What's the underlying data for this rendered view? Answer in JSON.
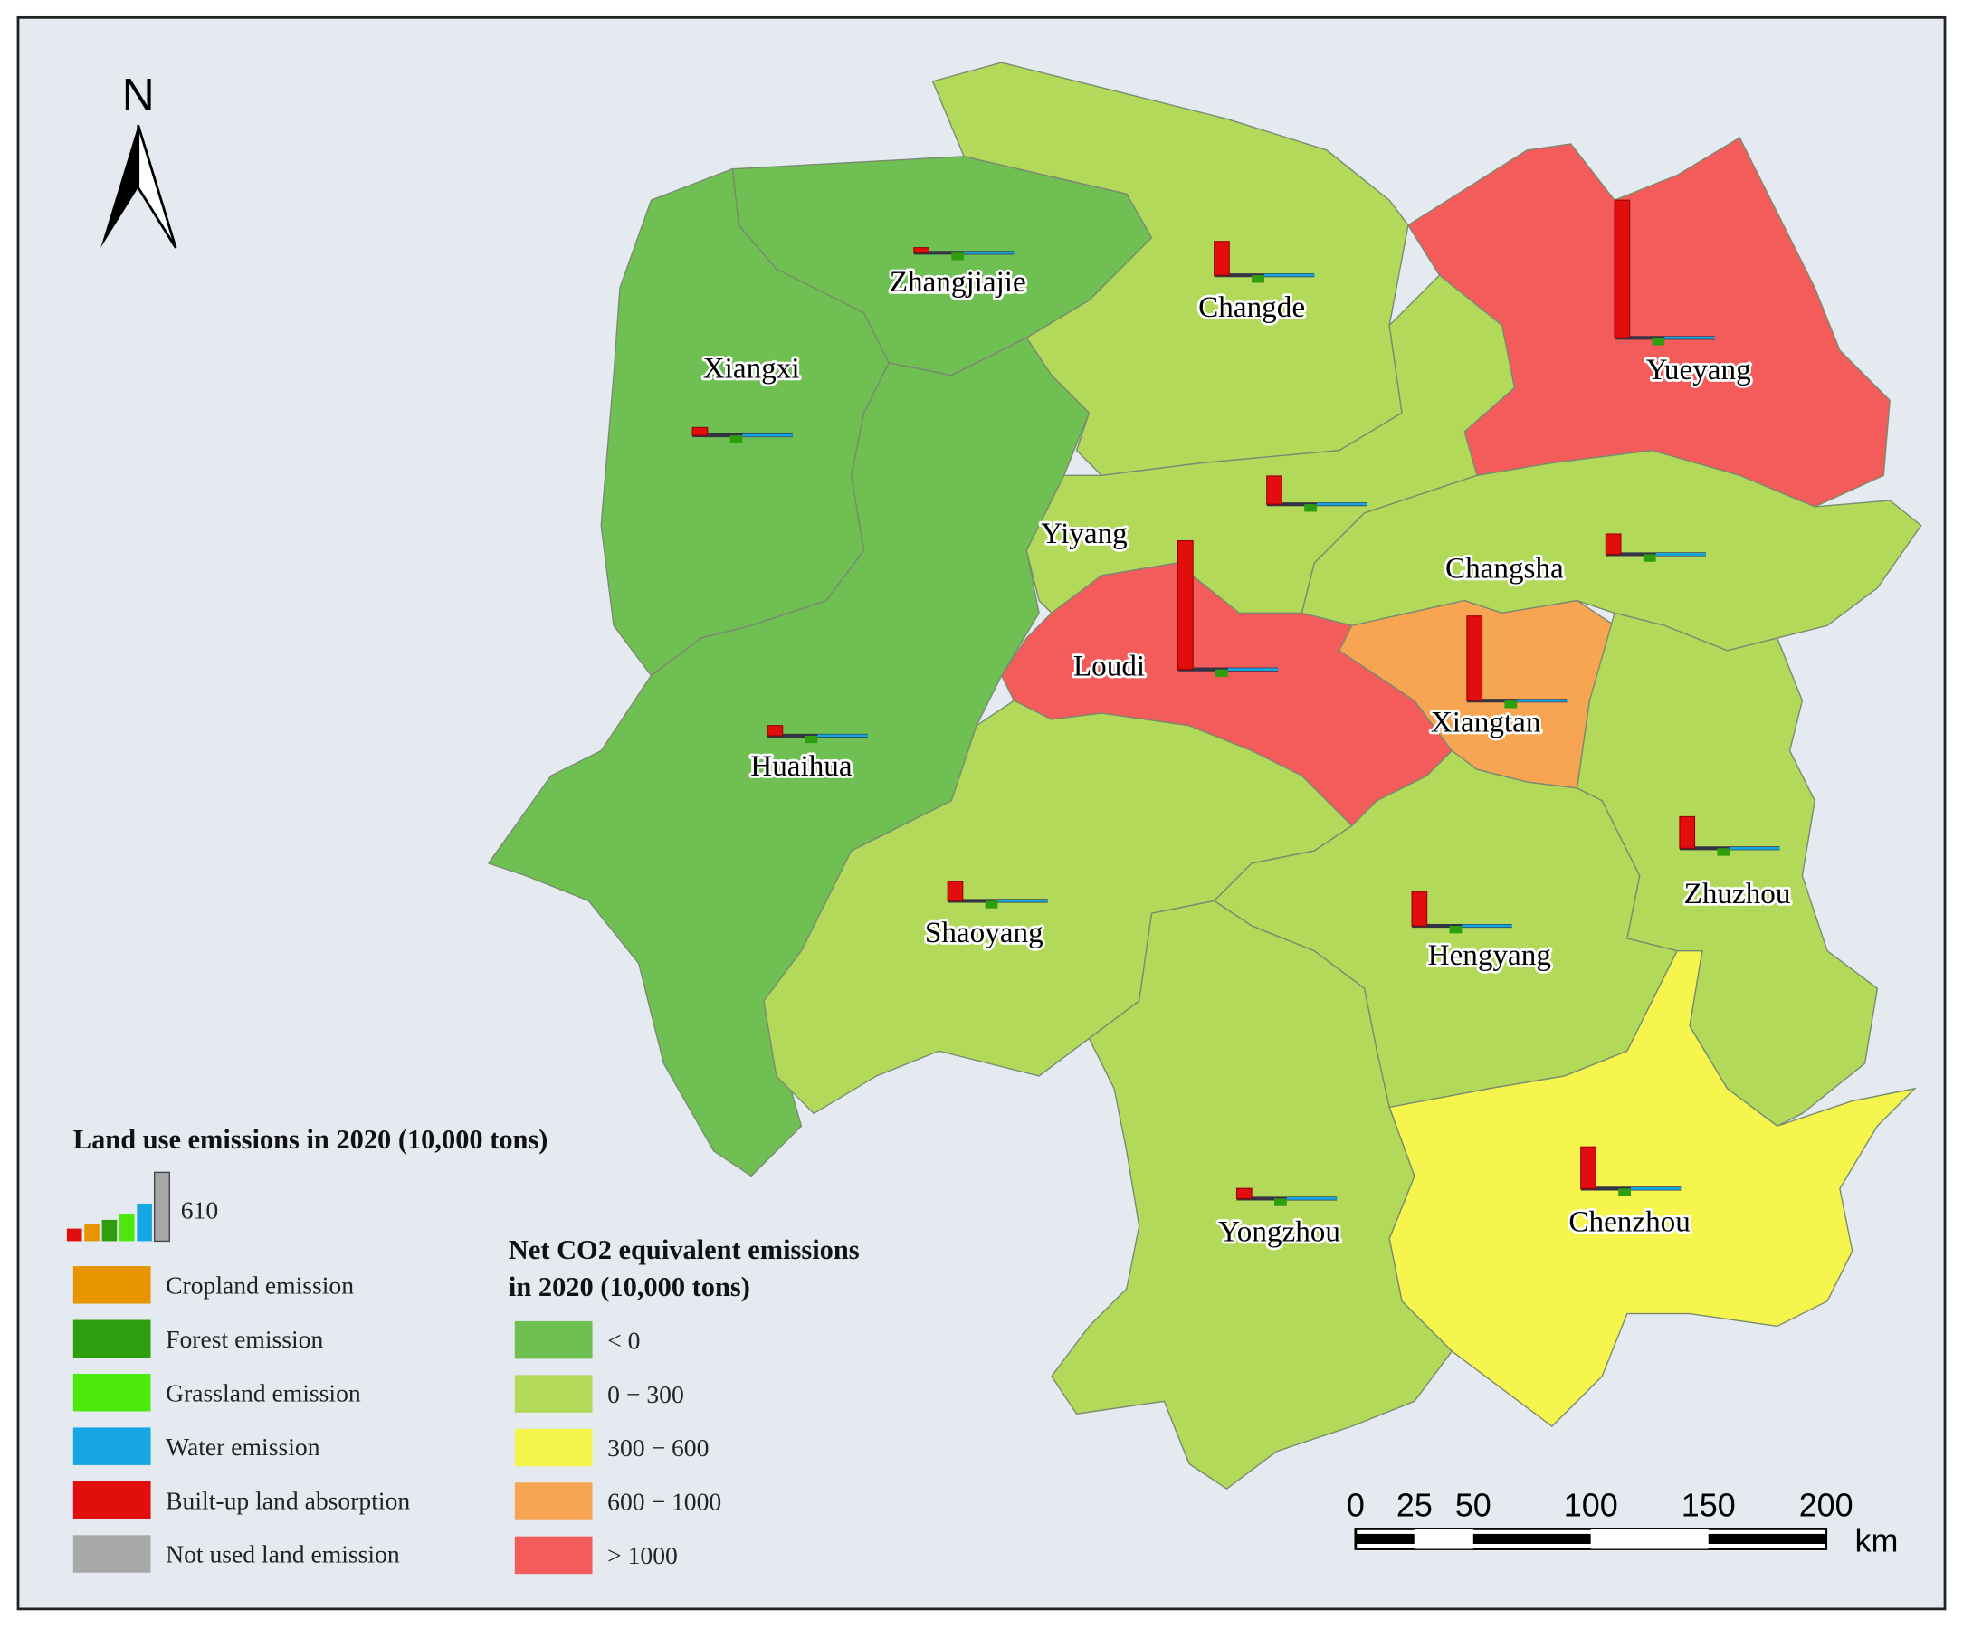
{
  "north": "N",
  "bar_legend": {
    "title": "Land use emissions in 2020 (10,000 tons)",
    "reference": 610,
    "items": [
      {
        "label": "Cropland emission",
        "color": "#e69500"
      },
      {
        "label": "Forest emission",
        "color": "#2e9e0e"
      },
      {
        "label": "Grassland emission",
        "color": "#4de80c"
      },
      {
        "label": "Water emission",
        "color": "#16a6e3"
      },
      {
        "label": "Built-up land absorption",
        "color": "#e20d0d"
      },
      {
        "label": "Not used land emission",
        "color": "#a8a8a8"
      }
    ]
  },
  "class_legend": {
    "title": [
      "Net CO2 equivalent emissions",
      "in 2020 (10,000 tons)"
    ],
    "items": [
      {
        "label": "< 0",
        "color": "#6fbf53"
      },
      {
        "label": "0 − 300",
        "color": "#b2d95a"
      },
      {
        "label": "300 − 600",
        "color": "#f5f54e"
      },
      {
        "label": "600 − 1000",
        "color": "#f7a553"
      },
      {
        "label": "> 1000",
        "color": "#f45b5b"
      }
    ]
  },
  "cities": [
    {
      "name": "Zhangjiajie",
      "class": 0,
      "built_up": 45
    },
    {
      "name": "Changde",
      "class": 1,
      "built_up": 300
    },
    {
      "name": "Yueyang",
      "class": 4,
      "built_up": 1220
    },
    {
      "name": "Xiangxi",
      "class": 0,
      "built_up": 70
    },
    {
      "name": "Yiyang",
      "class": 1,
      "built_up": 250
    },
    {
      "name": "Changsha",
      "class": 1,
      "built_up": 180
    },
    {
      "name": "Loudi",
      "class": 4,
      "built_up": 1140
    },
    {
      "name": "Xiangtan",
      "class": 3,
      "built_up": 750
    },
    {
      "name": "Huaihua",
      "class": 0,
      "built_up": 90
    },
    {
      "name": "Zhuzhou",
      "class": 1,
      "built_up": 280
    },
    {
      "name": "Shaoyang",
      "class": 1,
      "built_up": 170
    },
    {
      "name": "Hengyang",
      "class": 1,
      "built_up": 300
    },
    {
      "name": "Chenzhou",
      "class": 2,
      "built_up": 370
    },
    {
      "name": "Yongzhou",
      "class": 1,
      "built_up": 90
    }
  ],
  "scale_bar": {
    "ticks": [
      0,
      25,
      50,
      100,
      150,
      200
    ],
    "unit": "km"
  }
}
